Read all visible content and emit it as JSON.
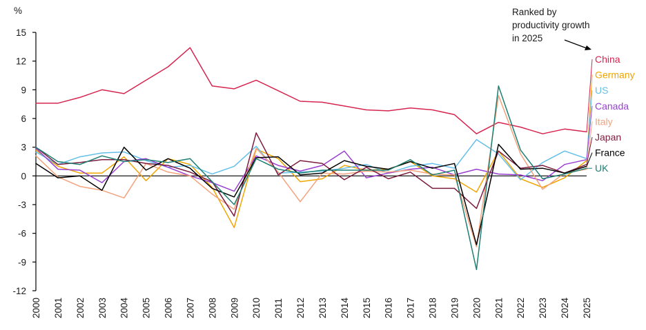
{
  "chart_data": {
    "type": "line",
    "title": "",
    "xlabel": "",
    "ylabel": "%",
    "ylim": [
      -12,
      15
    ],
    "yticks": [
      -12,
      -9,
      -6,
      -3,
      0,
      3,
      6,
      9,
      12,
      15
    ],
    "grid": false,
    "legend_location": "right, inline labels",
    "annotation": [
      "Ranked by",
      "productivity growth",
      "in 2025"
    ],
    "x": [
      "2000",
      "2001",
      "2002",
      "2003",
      "2004",
      "2005",
      "2006",
      "2007",
      "2008",
      "2009",
      "2010",
      "2011",
      "2012",
      "2013",
      "2014",
      "2015",
      "2016",
      "2017",
      "2018",
      "2019",
      "2020",
      "2021",
      "2022",
      "2023",
      "2024",
      "2025"
    ],
    "series": [
      {
        "name": "China",
        "color": "#d6244f",
        "values": [
          7.6,
          7.6,
          8.2,
          9.0,
          8.6,
          10.0,
          11.4,
          13.4,
          9.4,
          9.1,
          10.0,
          8.9,
          7.8,
          7.7,
          7.3,
          6.9,
          6.8,
          7.1,
          6.9,
          6.4,
          4.4,
          5.6,
          5.1,
          4.4,
          4.9,
          4.6
        ]
      },
      {
        "name": "Germany",
        "color": "#f0a500",
        "values": [
          2.7,
          1.0,
          0.3,
          0.3,
          2.0,
          -0.5,
          1.8,
          1.2,
          -1.2,
          -5.4,
          2.8,
          1.8,
          -0.6,
          -0.3,
          1.1,
          0.6,
          0.7,
          1.5,
          0.0,
          -0.3,
          -1.7,
          2.6,
          -0.3,
          -1.2,
          -0.2,
          1.6
        ]
      },
      {
        "name": "US",
        "color": "#63bfe9",
        "values": [
          2.5,
          1.2,
          2.0,
          2.4,
          2.5,
          1.6,
          0.9,
          1.1,
          0.2,
          1.0,
          3.1,
          0.3,
          0.4,
          0.5,
          0.8,
          1.2,
          0.3,
          1.0,
          1.3,
          0.8,
          3.8,
          2.3,
          -0.4,
          1.4,
          2.6,
          1.8
        ]
      },
      {
        "name": "Canada",
        "color": "#9a3fd2",
        "values": [
          2.9,
          0.7,
          0.6,
          -0.7,
          1.5,
          1.8,
          0.9,
          0.0,
          -0.7,
          -1.6,
          2.1,
          1.1,
          0.5,
          1.1,
          2.6,
          -0.2,
          0.3,
          0.7,
          0.9,
          0.1,
          0.7,
          0.2,
          0.1,
          -0.5,
          1.2,
          1.7
        ]
      },
      {
        "name": "Italy",
        "color": "#f4a27b",
        "values": [
          2.1,
          -0.1,
          -1.1,
          -1.5,
          -2.3,
          1.3,
          0.4,
          0.0,
          -1.9,
          -3.5,
          2.9,
          0.4,
          -2.7,
          0.3,
          0.2,
          0.5,
          0.4,
          0.6,
          0.2,
          0.1,
          -7.4,
          8.4,
          2.3,
          -1.4,
          0.3,
          0.7
        ]
      },
      {
        "name": "Japan",
        "color": "#7d1b3f",
        "values": [
          3.0,
          1.2,
          1.4,
          1.7,
          1.7,
          1.3,
          1.1,
          0.4,
          -0.6,
          -4.2,
          4.5,
          0.1,
          1.6,
          1.3,
          -0.4,
          0.9,
          -0.3,
          0.4,
          -1.3,
          -1.3,
          -3.4,
          2.6,
          0.8,
          1.1,
          0.3,
          1.2
        ]
      },
      {
        "name": "France",
        "color": "#000000",
        "values": [
          1.3,
          -0.2,
          0.0,
          -1.5,
          3.0,
          0.6,
          1.8,
          0.8,
          -1.3,
          -2.2,
          1.9,
          2.0,
          0.1,
          0.3,
          1.6,
          1.0,
          0.7,
          1.5,
          0.8,
          1.3,
          -7.2,
          3.3,
          0.7,
          0.8,
          0.3,
          1.0
        ]
      },
      {
        "name": "UK",
        "color": "#1e7f74",
        "values": [
          3.0,
          1.5,
          1.2,
          2.1,
          1.5,
          1.7,
          1.4,
          1.8,
          -0.6,
          -3.0,
          1.8,
          0.7,
          0.3,
          0.6,
          0.6,
          0.6,
          0.6,
          1.7,
          0.1,
          0.6,
          -9.8,
          9.4,
          2.7,
          -0.3,
          0.2,
          0.8
        ]
      }
    ]
  }
}
